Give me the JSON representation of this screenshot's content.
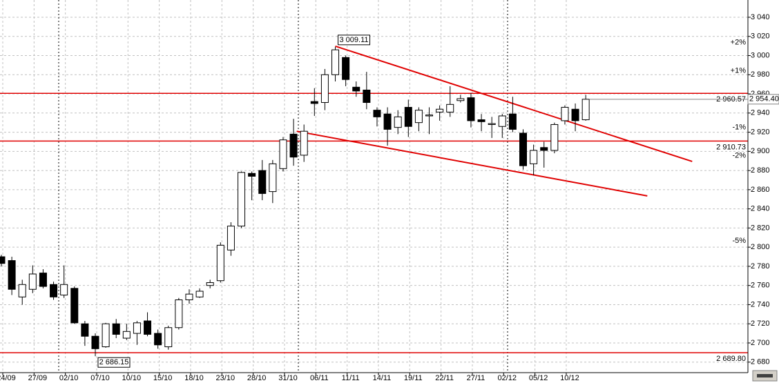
{
  "chart_data": {
    "type": "candlestick",
    "categories": [
      "24/09",
      null,
      null,
      "27/09",
      null,
      null,
      "02/10",
      null,
      null,
      "07/10",
      null,
      null,
      "10/10",
      null,
      null,
      "15/10",
      null,
      null,
      "18/10",
      null,
      null,
      "23/10",
      null,
      null,
      "28/10",
      null,
      null,
      "31/10",
      null,
      null,
      "06/11",
      null,
      null,
      "11/11",
      null,
      null,
      "14/11",
      null,
      null,
      "19/11",
      null,
      null,
      "22/11",
      null,
      null,
      "27/11",
      null,
      null,
      "02/12",
      null,
      null,
      "05/12",
      null,
      null,
      "10/12",
      null,
      null
    ],
    "open": [
      2790,
      2786,
      2748,
      2756,
      2773,
      2761,
      2750,
      2757,
      2720,
      2707,
      2696,
      2720,
      2705,
      2710,
      2723,
      2710,
      2696,
      2716,
      2745,
      2748,
      2760,
      2765,
      2797,
      2822,
      2877,
      2880,
      2858,
      2882,
      2918,
      2896,
      2952,
      2951,
      2980,
      2998,
      2967,
      2964,
      2943,
      2939,
      2925,
      2946,
      2930,
      2937,
      2941,
      2941,
      2953,
      2956,
      2933,
      2928,
      2926,
      2939,
      2919,
      2887,
      2904,
      2901,
      2932,
      2944,
      2933
    ],
    "high": [
      2792,
      2790,
      2766,
      2781,
      2777,
      2764,
      2781,
      2759,
      2723,
      2710,
      2721,
      2725,
      2720,
      2723,
      2732,
      2714,
      2718,
      2747,
      2756,
      2757,
      2766,
      2805,
      2826,
      2879,
      2879,
      2891,
      2891,
      2915,
      2934,
      2928,
      2966,
      2986,
      3009.11,
      3000,
      2973,
      2983,
      2946,
      2946,
      2943,
      2954,
      2946,
      2946,
      2948,
      2968,
      2959,
      2961,
      2939,
      2936,
      2939,
      2957,
      2923,
      2907,
      2910,
      2930,
      2948,
      2950,
      2959
    ],
    "low": [
      2780,
      2750,
      2740,
      2752,
      2757,
      2745,
      2747,
      2720,
      2697,
      2686.15,
      2695,
      2705,
      2703,
      2698,
      2707,
      2694,
      2693,
      2714,
      2741,
      2747,
      2757,
      2763,
      2791,
      2820,
      2849,
      2849,
      2846,
      2879,
      2885,
      2889,
      2937,
      2943,
      2973,
      2968,
      2957,
      2944,
      2926,
      2906,
      2918,
      2915,
      2921,
      2918,
      2932,
      2936,
      2951,
      2925,
      2921,
      2914,
      2914,
      2920,
      2881,
      2875,
      2883,
      2898,
      2928,
      2921,
      2932
    ],
    "close": [
      2783,
      2756,
      2761,
      2772,
      2759,
      2748,
      2761,
      2721,
      2707,
      2694,
      2720,
      2709,
      2712,
      2721,
      2709,
      2698,
      2716,
      2745,
      2751,
      2754,
      2763,
      2802,
      2822,
      2878,
      2874,
      2856,
      2887,
      2912,
      2894,
      2921,
      2950,
      2980,
      3006,
      2975,
      2963,
      2951,
      2936,
      2923,
      2936,
      2926,
      2943,
      2938,
      2944,
      2949,
      2955,
      2932,
      2931,
      2929,
      2937,
      2923,
      2885,
      2901,
      2901,
      2928,
      2946,
      2932,
      2954.4
    ],
    "up_color": "#ffffff",
    "down_color": "#000000",
    "ylim": [
      2669,
      3058
    ],
    "yticks": [
      {
        "value": 2680,
        "label": "2 680"
      },
      {
        "value": 2700,
        "label": "2 700"
      },
      {
        "value": 2720,
        "label": "2 720"
      },
      {
        "value": 2740,
        "label": "2 740"
      },
      {
        "value": 2760,
        "label": "2 760"
      },
      {
        "value": 2780,
        "label": "2 780"
      },
      {
        "value": 2800,
        "label": "2 800"
      },
      {
        "value": 2820,
        "label": "2 820"
      },
      {
        "value": 2840,
        "label": "2 840"
      },
      {
        "value": 2860,
        "label": "2 860"
      },
      {
        "value": 2880,
        "label": "2 880"
      },
      {
        "value": 2900,
        "label": "2 900"
      },
      {
        "value": 2920,
        "label": "2 920"
      },
      {
        "value": 2940,
        "label": "2 940"
      },
      {
        "value": 2960,
        "label": "2 960"
      },
      {
        "value": 2980,
        "label": "2 980"
      },
      {
        "value": 3000,
        "label": "3 000"
      },
      {
        "value": 3020,
        "label": "3 020"
      },
      {
        "value": 3040,
        "label": "3 040"
      }
    ],
    "grid": true,
    "hlines": [
      {
        "value": 2960.57,
        "label": "2 960.57"
      },
      {
        "value": 2910.73,
        "label": "2 910.73"
      },
      {
        "value": 2689.8,
        "label": "2 689.80"
      }
    ],
    "hline_color": "#e00000",
    "last_price": {
      "value": 2954.4,
      "label": "2 954.40"
    },
    "percent_levels": [
      {
        "value": 2,
        "label": "+2%"
      },
      {
        "value": 1,
        "label": "+1%"
      },
      {
        "value": -1,
        "label": "-1%"
      },
      {
        "value": -2,
        "label": "-2%"
      },
      {
        "value": -5,
        "label": "-5%"
      }
    ],
    "positive_color": "#008000",
    "negative_color": "#cc0000",
    "trendlines": [
      {
        "x": [
          32,
          66.2
        ],
        "y": [
          3009.8,
          2889.5
        ]
      },
      {
        "x": [
          28.3,
          61.9
        ],
        "y": [
          2921,
          2853.5
        ]
      }
    ],
    "trendline_color": "#e00000",
    "annotations": [
      {
        "x": 32,
        "y": 3009.11,
        "label": "3 009.11",
        "position": "above"
      },
      {
        "x": 9,
        "y": 2686.15,
        "label": "2 686.15",
        "position": "below"
      }
    ]
  }
}
